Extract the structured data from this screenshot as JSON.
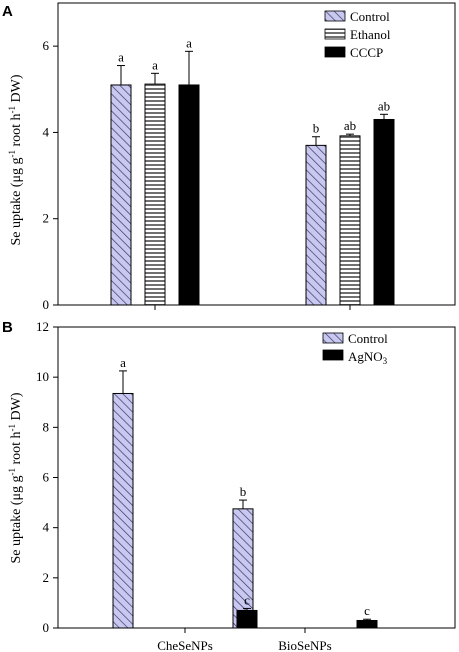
{
  "chart_data": [
    {
      "panel_label": "A",
      "type": "bar",
      "categories": [
        "CheSeNPs",
        "BioSeNPs"
      ],
      "ylabel_parts": [
        "Se uptake (μg g",
        "-1",
        " root h",
        "-1",
        " DW)"
      ],
      "ylim": [
        0,
        7
      ],
      "yticks": [
        "0",
        "2",
        "4",
        "6"
      ],
      "legend_position": "top-right",
      "series": [
        {
          "name": "Control",
          "values": [
            5.1,
            3.7
          ],
          "errors": [
            0.45,
            0.2
          ],
          "letters": [
            "a",
            "b"
          ],
          "fill": "hatch",
          "color": "#c8c8f0"
        },
        {
          "name": "Ethanol",
          "values": [
            5.12,
            3.92
          ],
          "errors": [
            0.25,
            0.04
          ],
          "letters": [
            "a",
            "ab"
          ],
          "fill": "hstripes",
          "color": "#808080"
        },
        {
          "name": "CCCP",
          "values": [
            5.1,
            4.3
          ],
          "errors": [
            0.78,
            0.12
          ],
          "letters": [
            "a",
            "ab"
          ],
          "fill": "solid",
          "color": "#000000"
        }
      ]
    },
    {
      "panel_label": "B",
      "type": "bar",
      "categories": [
        "CheSeNPs",
        "BioSeNPs"
      ],
      "ylabel_parts": [
        "Se uptake (μg g",
        "-1",
        " root h",
        "-1",
        " DW)"
      ],
      "ylim": [
        0,
        12
      ],
      "yticks": [
        "0",
        "2",
        "4",
        "6",
        "8",
        "10",
        "12"
      ],
      "legend_position": "top-right",
      "series": [
        {
          "name_main": "Control",
          "name_sub": "",
          "values": [
            9.35,
            4.75
          ],
          "errors": [
            0.9,
            0.35
          ],
          "letters": [
            "a",
            "b"
          ],
          "fill": "hatch",
          "color": "#c8c8f0"
        },
        {
          "name_main": "AgNO",
          "name_sub": "3",
          "values": [
            0.7,
            0.3
          ],
          "errors": [
            0.08,
            0.05
          ],
          "letters": [
            "c",
            "c"
          ],
          "fill": "solid",
          "color": "#000000"
        }
      ]
    }
  ]
}
